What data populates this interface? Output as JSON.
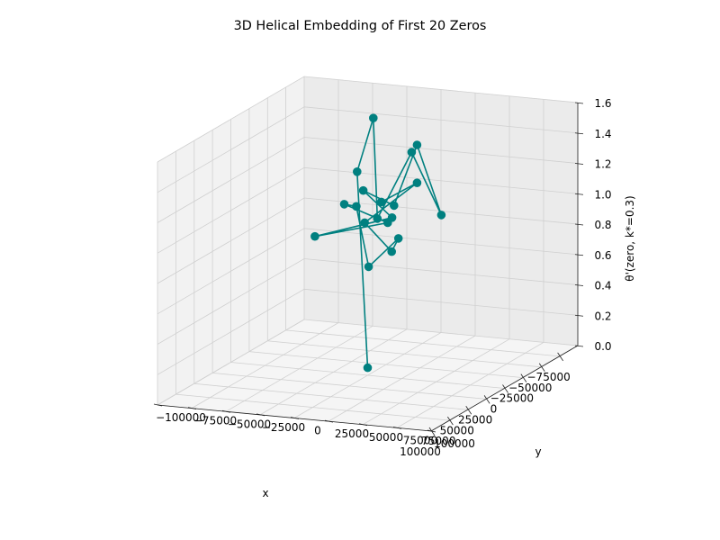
{
  "chart_data": {
    "type": "scatter",
    "projection": "3d",
    "title": "3D Helical Embedding of First 20 Zeros",
    "xlabel": "x",
    "ylabel": "y",
    "zlabel": "θ'(zero, k*=0.3)",
    "xlim": [
      -100000,
      100000
    ],
    "ylim": [
      -100000,
      100000
    ],
    "zlim": [
      0,
      1.6
    ],
    "xticks": [
      "−75000",
      "−50000",
      "−25000",
      "0",
      "25000",
      "50000",
      "75000",
      "100000"
    ],
    "yticks": [
      "−100000",
      "−75000",
      "−50000",
      "−25000",
      "0",
      "25000",
      "50000",
      "75000",
      "100000"
    ],
    "zticks": [
      "0.0",
      "0.2",
      "0.4",
      "0.6",
      "0.8",
      "1.0",
      "1.2",
      "1.4",
      "1.6"
    ],
    "grid": true,
    "series": [
      {
        "color": "#008080",
        "marker": "circle",
        "line": true,
        "points": [
          {
            "x": 0,
            "y": 0,
            "z": 0.05
          },
          {
            "x": 5000,
            "y": -5000,
            "z": 1.35
          },
          {
            "x": -45000,
            "y": -20000,
            "z": 1.55
          },
          {
            "x": 80000,
            "y": 50000,
            "z": 1.3
          },
          {
            "x": -60000,
            "y": 0,
            "z": 1.3
          },
          {
            "x": 30000,
            "y": 70000,
            "z": 1.2
          },
          {
            "x": -30000,
            "y": 20000,
            "z": 1.45
          },
          {
            "x": 20000,
            "y": 30000,
            "z": 1.2
          },
          {
            "x": -50000,
            "y": -30000,
            "z": 1.05
          },
          {
            "x": 60000,
            "y": 50000,
            "z": 1.25
          },
          {
            "x": -40000,
            "y": -60000,
            "z": 0.75
          },
          {
            "x": 10000,
            "y": 20000,
            "z": 1.05
          },
          {
            "x": -80000,
            "y": -60000,
            "z": 0.85
          },
          {
            "x": 90000,
            "y": 40000,
            "z": 1.4
          },
          {
            "x": -20000,
            "y": -10000,
            "z": 0.65
          },
          {
            "x": 70000,
            "y": 60000,
            "z": 1.15
          },
          {
            "x": -70000,
            "y": -20000,
            "z": 0.6
          },
          {
            "x": 60000,
            "y": 30000,
            "z": 1.2
          },
          {
            "x": -30000,
            "y": 20000,
            "z": 1.2
          },
          {
            "x": 0,
            "y": 10000,
            "z": 1.15
          }
        ]
      }
    ]
  }
}
